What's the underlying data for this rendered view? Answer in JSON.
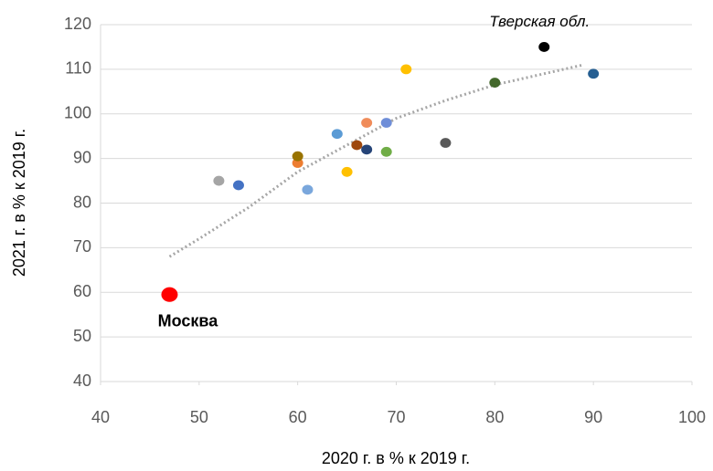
{
  "chart_data": {
    "type": "scatter",
    "x_label": "2020 г. в % к 2019 г.",
    "y_label": "2021 г. в % к 2019 г.",
    "x": [
      47,
      52,
      54,
      60,
      60,
      61,
      64,
      65,
      66,
      67,
      67,
      69,
      69,
      71,
      75,
      80,
      85,
      90
    ],
    "y": [
      59.5,
      85,
      84,
      89,
      90.5,
      83,
      95.5,
      87,
      93,
      92,
      98,
      98,
      91.5,
      110,
      93.5,
      107,
      115,
      109
    ],
    "colors": [
      "#ff0000",
      "#a5a5a5",
      "#4472c4",
      "#ed7d31",
      "#997300",
      "#7aa7dc",
      "#5b9bd5",
      "#ffc000",
      "#9e480e",
      "#264478",
      "#f08c5a",
      "#6f8ed8",
      "#70ad47",
      "#ffc000",
      "#595959",
      "#43682b",
      "#000000",
      "#255e91"
    ],
    "sizes": [
      9,
      6,
      6,
      6,
      6,
      6,
      6,
      6,
      6,
      6,
      6,
      6,
      6,
      6,
      6,
      6,
      6,
      6
    ],
    "point_labels": [
      "Москва",
      null,
      null,
      null,
      null,
      null,
      null,
      null,
      null,
      null,
      null,
      null,
      null,
      null,
      null,
      null,
      "Тверская обл.",
      null
    ],
    "trendline": {
      "x": [
        47,
        50,
        55,
        60,
        65,
        70,
        75,
        80,
        85,
        89
      ],
      "y": [
        68,
        72,
        79,
        87,
        93,
        99,
        103,
        106.5,
        109,
        111
      ],
      "color": "#a6a6a6"
    },
    "xlim": [
      40,
      100
    ],
    "xticks": [
      40,
      50,
      60,
      70,
      80,
      90,
      100
    ],
    "ylim": [
      40,
      120
    ],
    "yticks": [
      40,
      50,
      60,
      70,
      80,
      90,
      100,
      110,
      120
    ],
    "grid": true
  }
}
